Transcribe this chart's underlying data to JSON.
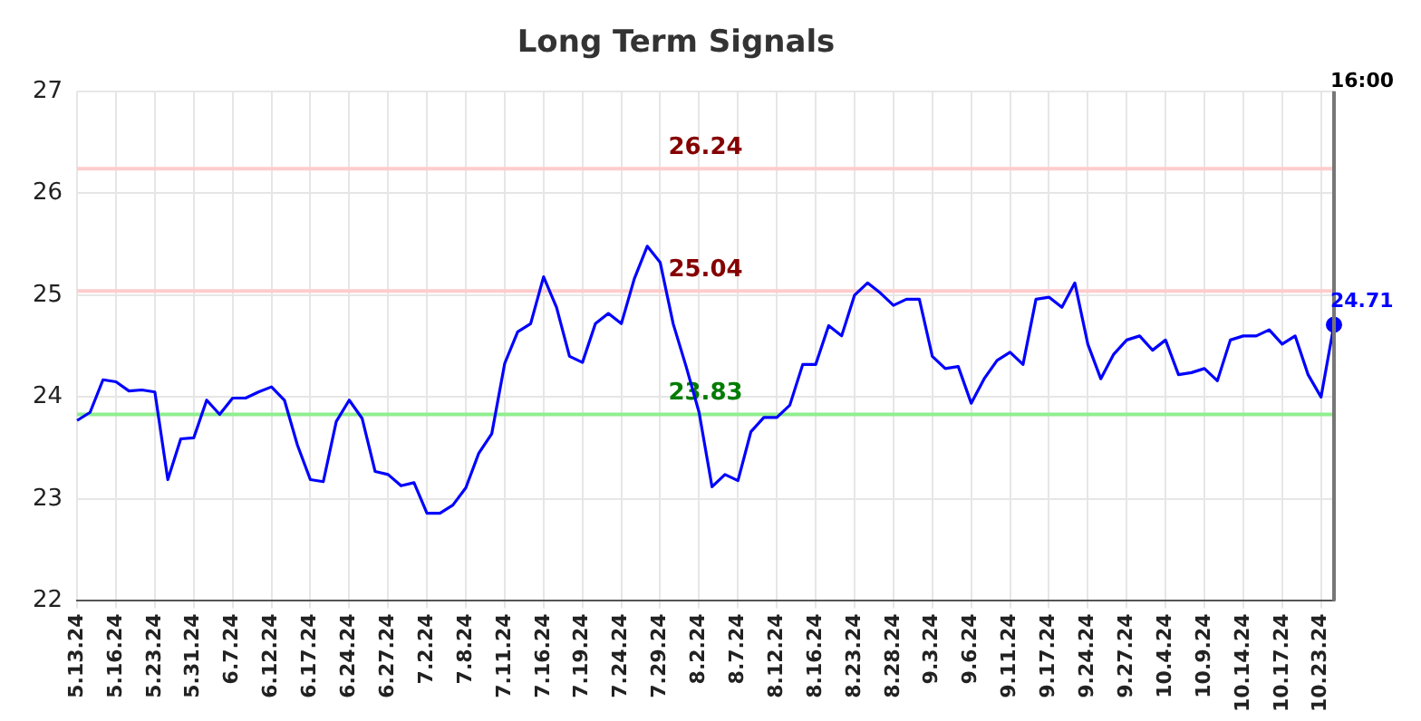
{
  "chart_data": {
    "type": "line",
    "title": "Long Term Signals",
    "categories": [
      "5.13.24",
      null,
      null,
      "5.16.24",
      null,
      null,
      "5.23.24",
      null,
      null,
      "5.31.24",
      null,
      null,
      "6.7.24",
      null,
      null,
      "6.12.24",
      null,
      null,
      "6.17.24",
      null,
      null,
      "6.24.24",
      null,
      null,
      "6.27.24",
      null,
      null,
      "7.2.24",
      null,
      null,
      "7.8.24",
      null,
      null,
      "7.11.24",
      null,
      null,
      "7.16.24",
      null,
      null,
      "7.19.24",
      null,
      null,
      "7.24.24",
      null,
      null,
      "7.29.24",
      null,
      null,
      "8.2.24",
      null,
      null,
      "8.7.24",
      null,
      null,
      "8.12.24",
      null,
      null,
      "8.16.24",
      null,
      null,
      "8.23.24",
      null,
      null,
      "8.28.24",
      null,
      null,
      "9.3.24",
      null,
      null,
      "9.6.24",
      null,
      null,
      "9.11.24",
      null,
      null,
      "9.17.24",
      null,
      null,
      "9.24.24",
      null,
      null,
      "9.27.24",
      null,
      null,
      "10.4.24",
      null,
      null,
      "10.9.24",
      null,
      null,
      "10.14.24",
      null,
      null,
      "10.17.24",
      null,
      null,
      "10.23.24",
      null
    ],
    "series": [
      {
        "color": "#0000ff",
        "values": [
          23.77,
          23.85,
          24.17,
          24.15,
          24.06,
          24.07,
          24.05,
          23.19,
          23.59,
          23.6,
          23.97,
          23.83,
          23.99,
          23.99,
          24.05,
          24.1,
          23.97,
          23.53,
          23.19,
          23.17,
          23.76,
          23.97,
          23.79,
          23.27,
          23.24,
          23.13,
          23.16,
          22.86,
          22.86,
          22.94,
          23.11,
          23.45,
          23.64,
          24.33,
          24.64,
          24.72,
          25.18,
          24.88,
          24.4,
          24.34,
          24.72,
          24.82,
          24.72,
          25.16,
          25.48,
          25.32,
          24.72,
          24.3,
          23.85,
          23.12,
          23.24,
          23.18,
          23.66,
          23.8,
          23.8,
          23.92,
          24.32,
          24.32,
          24.7,
          24.6,
          25.0,
          25.12,
          25.02,
          24.9,
          24.96,
          24.96,
          24.4,
          24.28,
          24.3,
          23.94,
          24.18,
          24.36,
          24.44,
          24.32,
          24.96,
          24.98,
          24.88,
          25.12,
          24.52,
          24.18,
          24.42,
          24.56,
          24.6,
          24.46,
          24.56,
          24.22,
          24.24,
          24.28,
          24.16,
          24.56,
          24.6,
          24.6,
          24.66,
          24.52,
          24.6,
          24.22,
          24.0,
          24.71
        ]
      },
      {
        "type": "scatter",
        "color": "#0000ff",
        "marker": "circle",
        "values": [
          null,
          null,
          null,
          null,
          null,
          null,
          null,
          null,
          null,
          null,
          null,
          null,
          null,
          null,
          null,
          null,
          null,
          null,
          null,
          null,
          null,
          null,
          null,
          null,
          null,
          null,
          null,
          null,
          null,
          null,
          null,
          null,
          null,
          null,
          null,
          null,
          null,
          null,
          null,
          null,
          null,
          null,
          null,
          null,
          null,
          null,
          null,
          null,
          null,
          null,
          null,
          null,
          null,
          null,
          null,
          null,
          null,
          null,
          null,
          null,
          null,
          null,
          null,
          null,
          null,
          null,
          null,
          null,
          null,
          null,
          null,
          null,
          null,
          null,
          null,
          null,
          null,
          null,
          null,
          null,
          null,
          null,
          null,
          null,
          null,
          null,
          null,
          null,
          null,
          null,
          null,
          null,
          null,
          null,
          null,
          null,
          null,
          24.71
        ],
        "value_labels": [
          null,
          null,
          null,
          null,
          null,
          null,
          null,
          null,
          null,
          null,
          null,
          null,
          null,
          null,
          null,
          null,
          null,
          null,
          null,
          null,
          null,
          null,
          null,
          null,
          null,
          null,
          null,
          null,
          null,
          null,
          null,
          null,
          null,
          null,
          null,
          null,
          null,
          null,
          null,
          null,
          null,
          null,
          null,
          null,
          null,
          null,
          null,
          null,
          null,
          null,
          null,
          null,
          null,
          null,
          null,
          null,
          null,
          null,
          null,
          null,
          null,
          null,
          null,
          null,
          null,
          null,
          null,
          null,
          null,
          null,
          null,
          null,
          null,
          null,
          null,
          null,
          null,
          null,
          null,
          null,
          null,
          null,
          null,
          null,
          null,
          null,
          null,
          null,
          null,
          null,
          null,
          null,
          null,
          null,
          null,
          null,
          null,
          "24.71"
        ]
      }
    ],
    "ylim": [
      22,
      27
    ],
    "yticks": [
      22,
      23,
      24,
      25,
      26,
      27
    ],
    "grid": true,
    "legend": false,
    "marker": "none",
    "ref_lines": [
      {
        "axis": "y",
        "value": 26.24,
        "label": "26.24",
        "color": "#ffcccc"
      },
      {
        "axis": "y",
        "value": 25.04,
        "label": "25.04",
        "color": "#ffcccc"
      },
      {
        "axis": "y",
        "value": 23.83,
        "label": "23.83",
        "color": "#90ee90"
      }
    ],
    "annotations": [
      "16:00"
    ]
  }
}
